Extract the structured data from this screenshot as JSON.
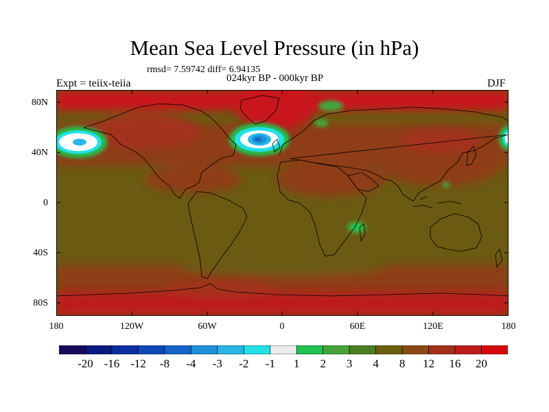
{
  "title": "Mean Sea Level Pressure (in hPa)",
  "stats": "rmsd= 7.59742 diff= 6.94135",
  "period": "024kyr BP - 000kyr BP",
  "experiment": "Expt = teiix-teiia",
  "season": "DJF",
  "lat_labels": [
    "80N",
    "40N",
    "0",
    "40S",
    "80S"
  ],
  "lon_labels": [
    "180",
    "120W",
    "60W",
    "0",
    "60E",
    "120E",
    "180"
  ],
  "colorbar": {
    "labels": [
      "-20",
      "-16",
      "-12",
      "-8",
      "-4",
      "-3",
      "-2",
      "-1",
      "1",
      "2",
      "3",
      "4",
      "8",
      "12",
      "16",
      "20"
    ],
    "colors": [
      "#1a0a5c",
      "#0a1a82",
      "#0d2e9e",
      "#0f47b5",
      "#1565c8",
      "#1e8fd8",
      "#27b6e6",
      "#24e0e8",
      "#ececec",
      "#20c050",
      "#44a43a",
      "#4a7d20",
      "#6a6010",
      "#8a4a12",
      "#a3301a",
      "#bd1a1a",
      "#d40a0a"
    ]
  },
  "map": {
    "background_color": "#6b5a12",
    "high_color": "#c8161a",
    "mid_color": "#8e3e14",
    "low_colors": [
      "#20c050",
      "#24e0e8",
      "#ffffff",
      "#1e8fd8",
      "#1565c8"
    ]
  }
}
